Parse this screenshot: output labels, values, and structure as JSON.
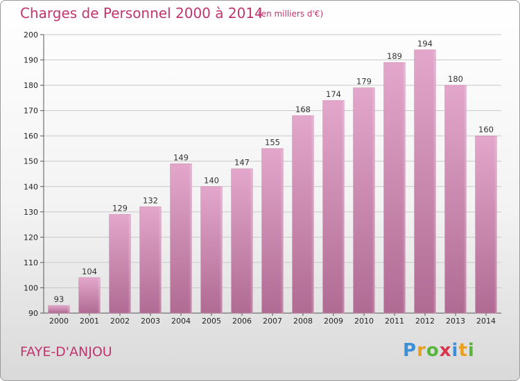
{
  "header": {
    "title": "Charges de Personnel 2000 à 2014",
    "unit_note": "(en milliers d'€)"
  },
  "footer": {
    "place_name": "FAYE-D'ANJOU",
    "brand_letters": [
      {
        "ch": "P",
        "color": "#3a8fd6"
      },
      {
        "ch": "r",
        "color": "#e8a020"
      },
      {
        "ch": "o",
        "color": "#58b53a"
      },
      {
        "ch": "x",
        "color": "#d9364d"
      },
      {
        "ch": "i",
        "color": "#3a8fd6"
      },
      {
        "ch": "t",
        "color": "#e8a020"
      },
      {
        "ch": "i",
        "color": "#58b53a"
      }
    ]
  },
  "chart_data": {
    "type": "bar",
    "title": "Charges de Personnel 2000 à 2014",
    "subtitle": "(en milliers d'€)",
    "categories": [
      "2000",
      "2001",
      "2002",
      "2003",
      "2004",
      "2005",
      "2006",
      "2007",
      "2008",
      "2009",
      "2010",
      "2011",
      "2012",
      "2013",
      "2014"
    ],
    "values": [
      93,
      104,
      129,
      132,
      149,
      140,
      147,
      155,
      168,
      174,
      179,
      189,
      194,
      180,
      160
    ],
    "ylim": [
      90,
      200
    ],
    "yticks": [
      90,
      100,
      110,
      120,
      130,
      140,
      150,
      160,
      170,
      180,
      190,
      200
    ],
    "grid": true,
    "bar_color": "#d98fb8",
    "bar_color_dark": "#b36a92"
  }
}
